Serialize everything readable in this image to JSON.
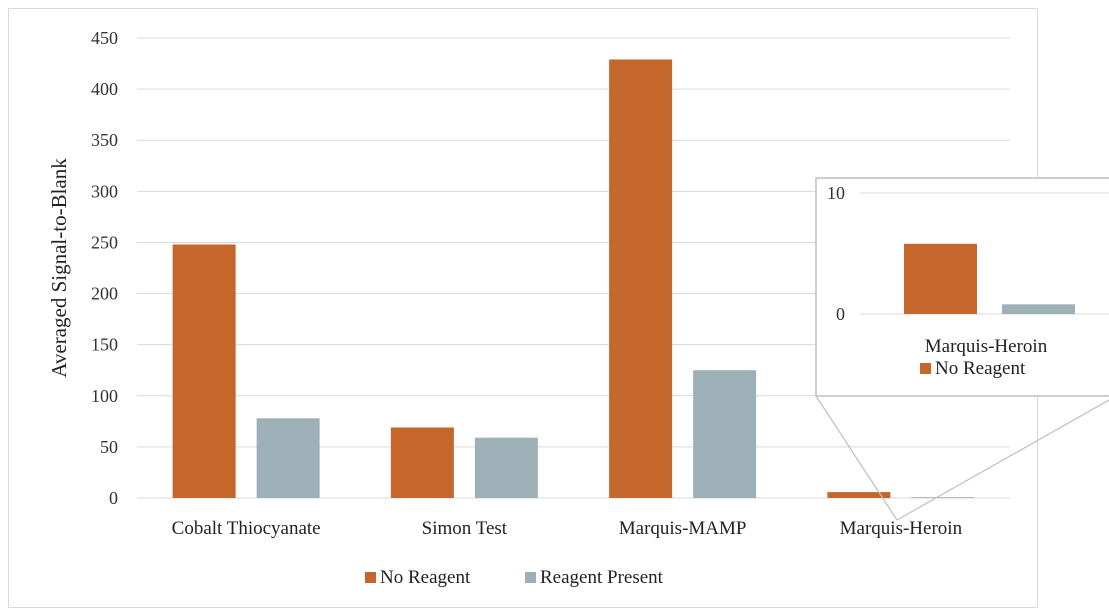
{
  "chart_data": {
    "type": "bar",
    "title": "",
    "xlabel": "",
    "ylabel": "Averaged Signal-to-Blank",
    "ylim": [
      0,
      450
    ],
    "yticks": [
      0,
      50,
      100,
      150,
      200,
      250,
      300,
      350,
      400,
      450
    ],
    "grid": true,
    "legend_position": "bottom",
    "categories": [
      "Cobalt Thiocyanate",
      "Simon Test",
      "Marquis-MAMP",
      "Marquis-Heroin"
    ],
    "series": [
      {
        "name": "No Reagent",
        "color": "#c5662d",
        "values": [
          248,
          69,
          429,
          5.8
        ]
      },
      {
        "name": "Reagent Present",
        "color": "#9eb0b7",
        "values": [
          78,
          59,
          125,
          0.8
        ]
      }
    ],
    "inset": {
      "category": "Marquis-Heroin",
      "ylim": [
        0,
        10
      ],
      "yticks": [
        0,
        10
      ],
      "legend_label": "No Reagent"
    }
  }
}
